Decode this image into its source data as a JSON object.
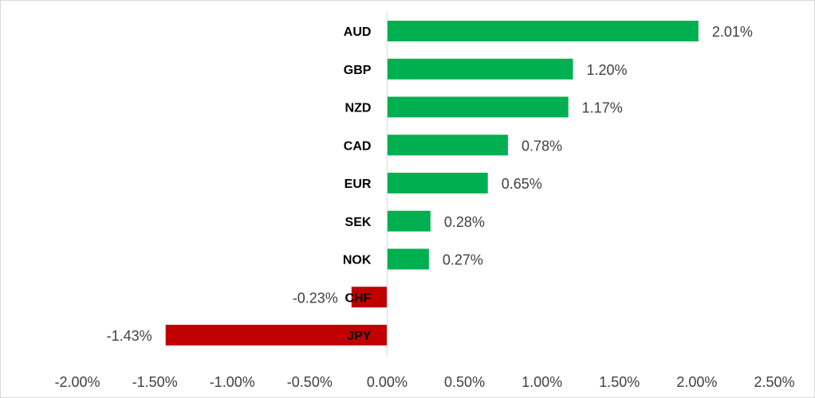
{
  "chart_data": {
    "type": "bar",
    "orientation": "horizontal",
    "categories": [
      "AUD",
      "GBP",
      "NZD",
      "CAD",
      "EUR",
      "SEK",
      "NOK",
      "CHF",
      "JPY"
    ],
    "values": [
      2.01,
      1.2,
      1.17,
      0.78,
      0.65,
      0.28,
      0.27,
      -0.23,
      -1.43
    ],
    "data_labels": [
      "2.01%",
      "1.20%",
      "1.17%",
      "0.78%",
      "0.65%",
      "0.28%",
      "0.27%",
      "-0.23%",
      "-1.43%"
    ],
    "x_ticks": [
      "-2.00%",
      "-1.50%",
      "-1.00%",
      "-0.50%",
      "0.00%",
      "0.50%",
      "1.00%",
      "1.50%",
      "2.00%",
      "2.50%"
    ],
    "x_tick_values": [
      -2.0,
      -1.5,
      -1.0,
      -0.5,
      0.0,
      0.5,
      1.0,
      1.5,
      2.0,
      2.5
    ],
    "xlim": [
      -2.0,
      2.5
    ],
    "title": "",
    "xlabel": "",
    "ylabel": "",
    "grid": false,
    "legend": "none",
    "colors": {
      "positive": "#00b050",
      "negative": "#c00000",
      "axis": "#d9d9d9"
    }
  }
}
